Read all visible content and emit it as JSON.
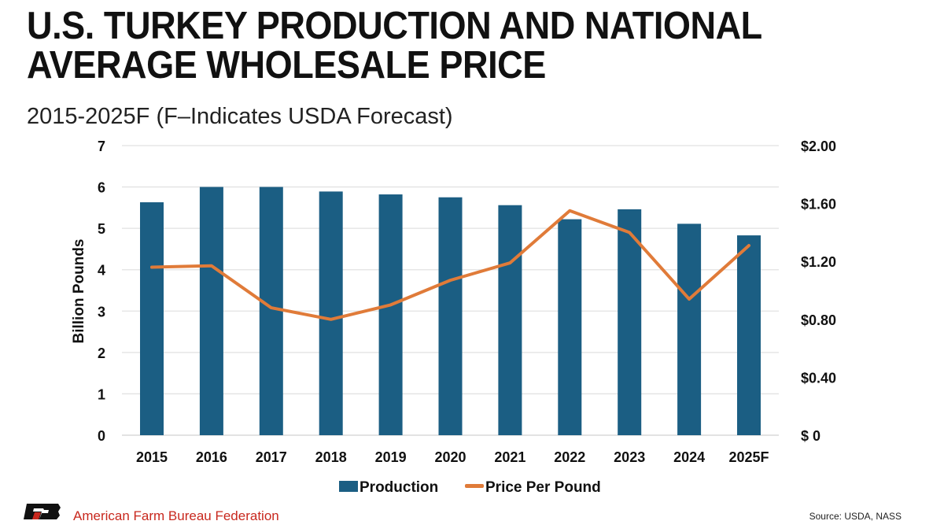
{
  "header": {
    "title_line1": "U.S. TURKEY PRODUCTION AND NATIONAL",
    "title_line2": "AVERAGE WHOLESALE PRICE",
    "subtitle": "2015-2025F (F–Indicates USDA Forecast)"
  },
  "footer": {
    "organization": "American Farm Bureau Federation",
    "source": "Source: USDA, NASS"
  },
  "chart_data": {
    "type": "bar+line",
    "categories": [
      "2015",
      "2016",
      "2017",
      "2018",
      "2019",
      "2020",
      "2021",
      "2022",
      "2023",
      "2024",
      "2025F"
    ],
    "series": [
      {
        "name": "Production",
        "type": "bar",
        "axis": "left",
        "color": "#1b5e83",
        "values": [
          5.63,
          6.0,
          6.0,
          5.89,
          5.82,
          5.75,
          5.56,
          5.22,
          5.46,
          5.11,
          4.83
        ]
      },
      {
        "name": "Price Per Pound",
        "type": "line",
        "axis": "right",
        "color": "#e07b39",
        "values": [
          1.16,
          1.17,
          0.88,
          0.8,
          0.9,
          1.07,
          1.19,
          1.55,
          1.4,
          0.94,
          1.31
        ]
      }
    ],
    "ylabel": "Billion Pounds",
    "ylim": [
      0,
      7
    ],
    "y_ticks": [
      "0",
      "1",
      "2",
      "3",
      "4",
      "5",
      "6",
      "7"
    ],
    "y2lim": [
      0,
      2.0
    ],
    "y2_ticks": [
      "$ 0",
      "$0.40",
      "$0.80",
      "$1.20",
      "$1.60",
      "$2.00"
    ],
    "grid": true,
    "legend_position": "bottom"
  }
}
